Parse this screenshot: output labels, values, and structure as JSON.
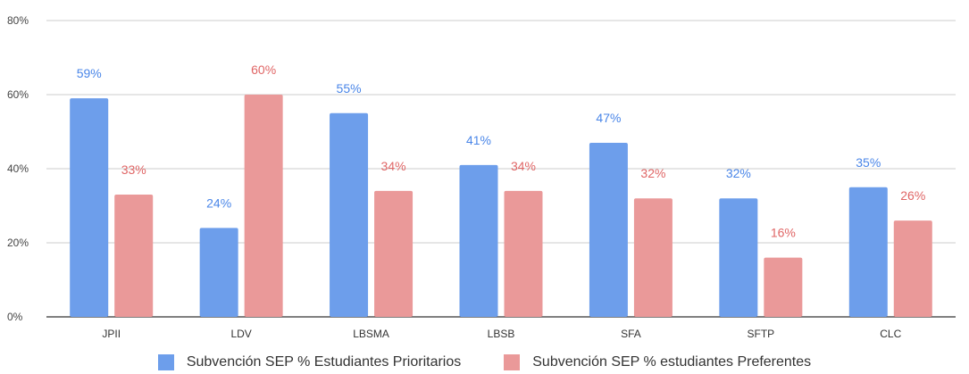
{
  "chart_data": {
    "type": "bar",
    "categories": [
      "JPII",
      "LDV",
      "LBSMA",
      "LBSB",
      "SFA",
      "SFTP",
      "CLC"
    ],
    "series": [
      {
        "name": "Subvención SEP %  Estudiantes  Prioritarios",
        "values": [
          59,
          24,
          55,
          41,
          47,
          32,
          35
        ],
        "color": "#6d9eeb",
        "label_color": "#4a86e8"
      },
      {
        "name": "Subvención SEP % estudiantes Preferentes",
        "values": [
          33,
          60,
          34,
          34,
          32,
          16,
          26
        ],
        "color": "#ea9999",
        "label_color": "#e06666"
      }
    ],
    "data_labels": [
      [
        "59%",
        "24%",
        "55%",
        "41%",
        "47%",
        "32%",
        "35%"
      ],
      [
        "33%",
        "60%",
        "34%",
        "34%",
        "32%",
        "16%",
        "26%"
      ]
    ],
    "yticks": [
      "0%",
      "20%",
      "40%",
      "60%",
      "80%"
    ],
    "ylim": [
      0,
      80
    ],
    "grid": true,
    "legend_position": "bottom",
    "title": "",
    "xlabel": "",
    "ylabel": ""
  }
}
